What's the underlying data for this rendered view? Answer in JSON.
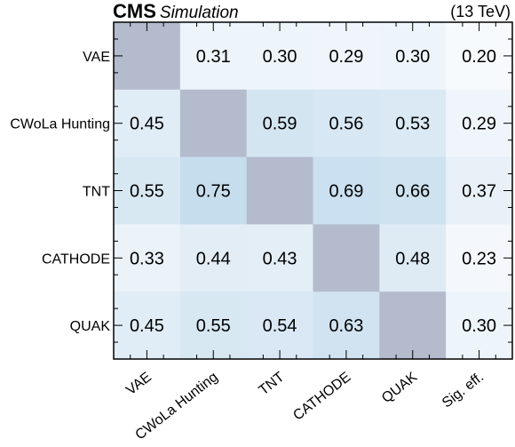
{
  "header": {
    "experiment": "CMS",
    "label": "Simulation",
    "energy": "(13 TeV)"
  },
  "chart_data": {
    "type": "heatmap",
    "rows": [
      "VAE",
      "CWoLa Hunting",
      "TNT",
      "CATHODE",
      "QUAK"
    ],
    "columns": [
      "VAE",
      "CWoLa Hunting",
      "TNT",
      "CATHODE",
      "QUAK",
      "Sig. eff."
    ],
    "values": [
      [
        null,
        0.31,
        0.3,
        0.29,
        0.3,
        0.2
      ],
      [
        0.45,
        null,
        0.59,
        0.56,
        0.53,
        0.29
      ],
      [
        0.55,
        0.75,
        null,
        0.69,
        0.66,
        0.37
      ],
      [
        0.33,
        0.44,
        0.43,
        null,
        0.48,
        0.23
      ],
      [
        0.45,
        0.55,
        0.54,
        0.63,
        null,
        0.3
      ]
    ],
    "labels": [
      [
        "",
        "0.31",
        "0.30",
        "0.29",
        "0.30",
        "0.20"
      ],
      [
        "0.45",
        "",
        "0.59",
        "0.56",
        "0.53",
        "0.29"
      ],
      [
        "0.55",
        "0.75",
        "",
        "0.69",
        "0.66",
        "0.37"
      ],
      [
        "0.33",
        "0.44",
        "0.43",
        "",
        "0.48",
        "0.23"
      ],
      [
        "0.45",
        "0.55",
        "0.54",
        "0.63",
        "",
        "0.30"
      ]
    ],
    "diagonal_color": "#b3bbcc",
    "colormap": [
      "#f7fafd",
      "#c6ddee"
    ],
    "color_range": [
      0.2,
      0.75
    ],
    "grid": false
  }
}
